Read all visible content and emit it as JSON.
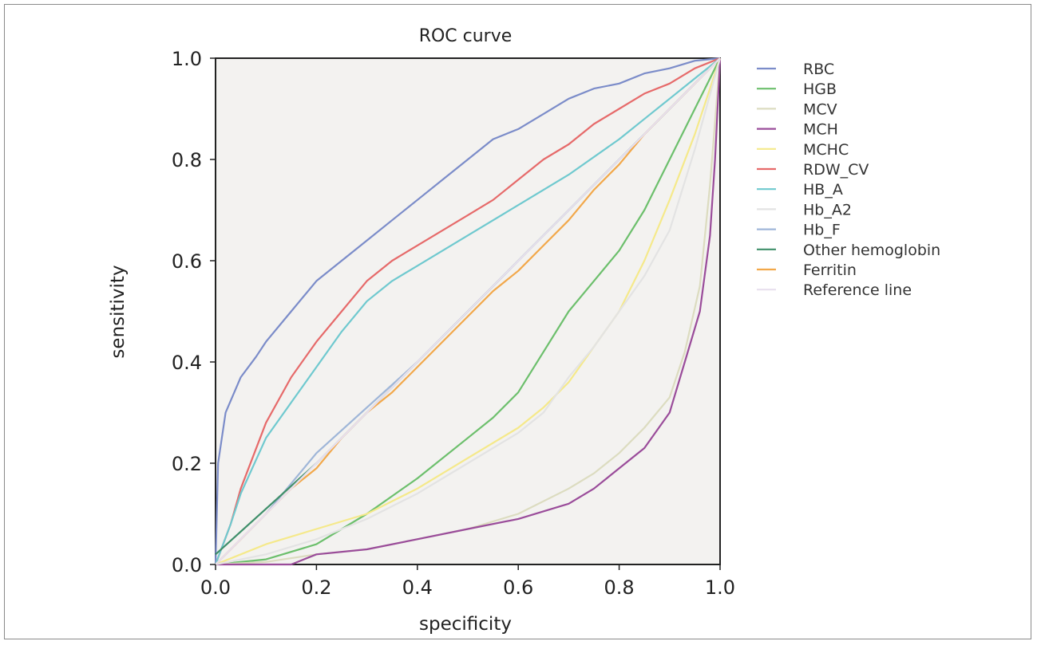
{
  "chart_data": {
    "type": "line",
    "title": "ROC curve",
    "xlabel": "specificity",
    "ylabel": "sensitivity",
    "xlim": [
      0,
      1
    ],
    "ylim": [
      0,
      1
    ],
    "xticks": [
      "0.0",
      "0.2",
      "0.4",
      "0.6",
      "0.8",
      "1.0"
    ],
    "yticks": [
      "0.0",
      "0.2",
      "0.4",
      "0.6",
      "0.8",
      "1.0"
    ],
    "grid": false,
    "legend_position": "right",
    "plot_background": "#f3f2f0",
    "series": [
      {
        "name": "RBC",
        "color": "#7b8cc9",
        "points": [
          [
            0,
            0
          ],
          [
            0.005,
            0.2
          ],
          [
            0.02,
            0.3
          ],
          [
            0.05,
            0.37
          ],
          [
            0.08,
            0.41
          ],
          [
            0.1,
            0.44
          ],
          [
            0.15,
            0.5
          ],
          [
            0.2,
            0.56
          ],
          [
            0.25,
            0.6
          ],
          [
            0.3,
            0.64
          ],
          [
            0.35,
            0.68
          ],
          [
            0.4,
            0.72
          ],
          [
            0.45,
            0.76
          ],
          [
            0.5,
            0.8
          ],
          [
            0.55,
            0.84
          ],
          [
            0.6,
            0.86
          ],
          [
            0.65,
            0.89
          ],
          [
            0.7,
            0.92
          ],
          [
            0.75,
            0.94
          ],
          [
            0.8,
            0.95
          ],
          [
            0.85,
            0.97
          ],
          [
            0.9,
            0.98
          ],
          [
            0.95,
            0.995
          ],
          [
            1,
            1
          ]
        ]
      },
      {
        "name": "HGB",
        "color": "#6cbf6c",
        "points": [
          [
            0,
            0
          ],
          [
            0.1,
            0.01
          ],
          [
            0.2,
            0.04
          ],
          [
            0.3,
            0.1
          ],
          [
            0.4,
            0.17
          ],
          [
            0.5,
            0.25
          ],
          [
            0.55,
            0.29
          ],
          [
            0.6,
            0.34
          ],
          [
            0.65,
            0.42
          ],
          [
            0.7,
            0.5
          ],
          [
            0.75,
            0.56
          ],
          [
            0.8,
            0.62
          ],
          [
            0.85,
            0.7
          ],
          [
            0.9,
            0.8
          ],
          [
            0.95,
            0.9
          ],
          [
            1,
            1
          ]
        ]
      },
      {
        "name": "MCV",
        "color": "#dcdcc0",
        "points": [
          [
            0,
            0
          ],
          [
            0.1,
            0.005
          ],
          [
            0.2,
            0.02
          ],
          [
            0.3,
            0.03
          ],
          [
            0.4,
            0.05
          ],
          [
            0.5,
            0.07
          ],
          [
            0.6,
            0.1
          ],
          [
            0.7,
            0.15
          ],
          [
            0.75,
            0.18
          ],
          [
            0.8,
            0.22
          ],
          [
            0.85,
            0.27
          ],
          [
            0.9,
            0.33
          ],
          [
            0.93,
            0.42
          ],
          [
            0.96,
            0.55
          ],
          [
            0.98,
            0.75
          ],
          [
            1,
            1
          ]
        ]
      },
      {
        "name": "MCH",
        "color": "#9a4c9a",
        "points": [
          [
            0,
            0
          ],
          [
            0.15,
            0
          ],
          [
            0.2,
            0.02
          ],
          [
            0.3,
            0.03
          ],
          [
            0.4,
            0.05
          ],
          [
            0.5,
            0.07
          ],
          [
            0.6,
            0.09
          ],
          [
            0.7,
            0.12
          ],
          [
            0.75,
            0.15
          ],
          [
            0.8,
            0.19
          ],
          [
            0.85,
            0.23
          ],
          [
            0.9,
            0.3
          ],
          [
            0.93,
            0.4
          ],
          [
            0.96,
            0.5
          ],
          [
            0.98,
            0.65
          ],
          [
            0.99,
            0.8
          ],
          [
            1,
            1
          ]
        ]
      },
      {
        "name": "MCHC",
        "color": "#f5e98a",
        "points": [
          [
            0,
            0
          ],
          [
            0.05,
            0.02
          ],
          [
            0.1,
            0.04
          ],
          [
            0.2,
            0.07
          ],
          [
            0.3,
            0.1
          ],
          [
            0.4,
            0.15
          ],
          [
            0.5,
            0.21
          ],
          [
            0.6,
            0.27
          ],
          [
            0.65,
            0.31
          ],
          [
            0.7,
            0.36
          ],
          [
            0.75,
            0.43
          ],
          [
            0.8,
            0.5
          ],
          [
            0.85,
            0.6
          ],
          [
            0.9,
            0.72
          ],
          [
            0.95,
            0.85
          ],
          [
            1,
            1
          ]
        ]
      },
      {
        "name": "RDW_CV",
        "color": "#e66a6a",
        "points": [
          [
            0,
            0
          ],
          [
            0.03,
            0.08
          ],
          [
            0.05,
            0.15
          ],
          [
            0.1,
            0.28
          ],
          [
            0.15,
            0.37
          ],
          [
            0.2,
            0.44
          ],
          [
            0.25,
            0.5
          ],
          [
            0.3,
            0.56
          ],
          [
            0.35,
            0.6
          ],
          [
            0.4,
            0.63
          ],
          [
            0.45,
            0.66
          ],
          [
            0.5,
            0.69
          ],
          [
            0.55,
            0.72
          ],
          [
            0.6,
            0.76
          ],
          [
            0.65,
            0.8
          ],
          [
            0.7,
            0.83
          ],
          [
            0.75,
            0.87
          ],
          [
            0.8,
            0.9
          ],
          [
            0.85,
            0.93
          ],
          [
            0.9,
            0.95
          ],
          [
            0.95,
            0.98
          ],
          [
            1,
            1
          ]
        ]
      },
      {
        "name": "HB_A",
        "color": "#6fc9cf",
        "points": [
          [
            0,
            0
          ],
          [
            0.03,
            0.08
          ],
          [
            0.05,
            0.14
          ],
          [
            0.1,
            0.25
          ],
          [
            0.15,
            0.32
          ],
          [
            0.2,
            0.39
          ],
          [
            0.25,
            0.46
          ],
          [
            0.3,
            0.52
          ],
          [
            0.35,
            0.56
          ],
          [
            0.4,
            0.59
          ],
          [
            0.5,
            0.65
          ],
          [
            0.6,
            0.71
          ],
          [
            0.7,
            0.77
          ],
          [
            0.8,
            0.84
          ],
          [
            0.85,
            0.88
          ],
          [
            0.9,
            0.92
          ],
          [
            0.95,
            0.96
          ],
          [
            1,
            1
          ]
        ]
      },
      {
        "name": "Hb_A2",
        "color": "#e3e3e3",
        "points": [
          [
            0,
            0
          ],
          [
            0.1,
            0.02
          ],
          [
            0.2,
            0.05
          ],
          [
            0.3,
            0.09
          ],
          [
            0.4,
            0.14
          ],
          [
            0.5,
            0.2
          ],
          [
            0.6,
            0.26
          ],
          [
            0.65,
            0.3
          ],
          [
            0.7,
            0.37
          ],
          [
            0.75,
            0.43
          ],
          [
            0.8,
            0.5
          ],
          [
            0.85,
            0.57
          ],
          [
            0.9,
            0.66
          ],
          [
            0.95,
            0.82
          ],
          [
            1,
            1
          ]
        ]
      },
      {
        "name": "Hb_F",
        "color": "#9fb6d8",
        "points": [
          [
            0,
            0
          ],
          [
            0.1,
            0.1
          ],
          [
            0.2,
            0.22
          ],
          [
            0.3,
            0.31
          ],
          [
            0.4,
            0.4
          ],
          [
            0.5,
            0.5
          ],
          [
            0.6,
            0.6
          ],
          [
            0.7,
            0.7
          ],
          [
            0.8,
            0.8
          ],
          [
            0.9,
            0.9
          ],
          [
            1,
            1
          ]
        ]
      },
      {
        "name": "Other hemoglobin",
        "color": "#3f8f6a",
        "points": [
          [
            0,
            0.02
          ],
          [
            0.2,
            0.2
          ],
          [
            0.4,
            0.4
          ],
          [
            0.6,
            0.6
          ],
          [
            0.8,
            0.8
          ],
          [
            1,
            1
          ]
        ]
      },
      {
        "name": "Ferritin",
        "color": "#f2a84a",
        "points": [
          [
            0,
            0
          ],
          [
            0.05,
            0.05
          ],
          [
            0.1,
            0.1
          ],
          [
            0.15,
            0.15
          ],
          [
            0.2,
            0.19
          ],
          [
            0.25,
            0.25
          ],
          [
            0.3,
            0.3
          ],
          [
            0.35,
            0.34
          ],
          [
            0.4,
            0.39
          ],
          [
            0.45,
            0.44
          ],
          [
            0.5,
            0.49
          ],
          [
            0.55,
            0.54
          ],
          [
            0.6,
            0.58
          ],
          [
            0.65,
            0.63
          ],
          [
            0.7,
            0.68
          ],
          [
            0.75,
            0.74
          ],
          [
            0.8,
            0.79
          ],
          [
            0.85,
            0.85
          ],
          [
            0.9,
            0.9
          ],
          [
            0.95,
            0.95
          ],
          [
            1,
            1
          ]
        ]
      },
      {
        "name": "Reference line",
        "color": "#e8dfee",
        "points": [
          [
            0,
            0
          ],
          [
            1,
            1
          ]
        ]
      }
    ]
  }
}
